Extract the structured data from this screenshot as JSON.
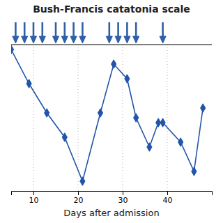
{
  "chart_data": {
    "type": "line",
    "title": "Bush-Francis catatonia scale",
    "xlabel": "Days after admission",
    "x": [
      5,
      9,
      13,
      17,
      21,
      25,
      28,
      31,
      33,
      36,
      38,
      39,
      43,
      46,
      48
    ],
    "values": [
      29,
      22,
      16,
      11,
      2,
      16,
      26,
      23,
      15,
      9,
      14,
      14,
      10,
      4,
      17
    ],
    "color": "#2255aa",
    "marker": "diamond",
    "xlim": [
      5,
      50
    ],
    "ylim": [
      0,
      30
    ],
    "xticks": [
      10,
      20,
      30,
      40
    ],
    "yticks": [],
    "grid": true,
    "tick_labels": "x",
    "arrows": {
      "x": [
        6,
        8,
        10,
        12,
        15,
        17,
        19,
        21,
        27,
        29,
        31,
        33,
        39
      ],
      "color": "#2f5fa5"
    }
  }
}
